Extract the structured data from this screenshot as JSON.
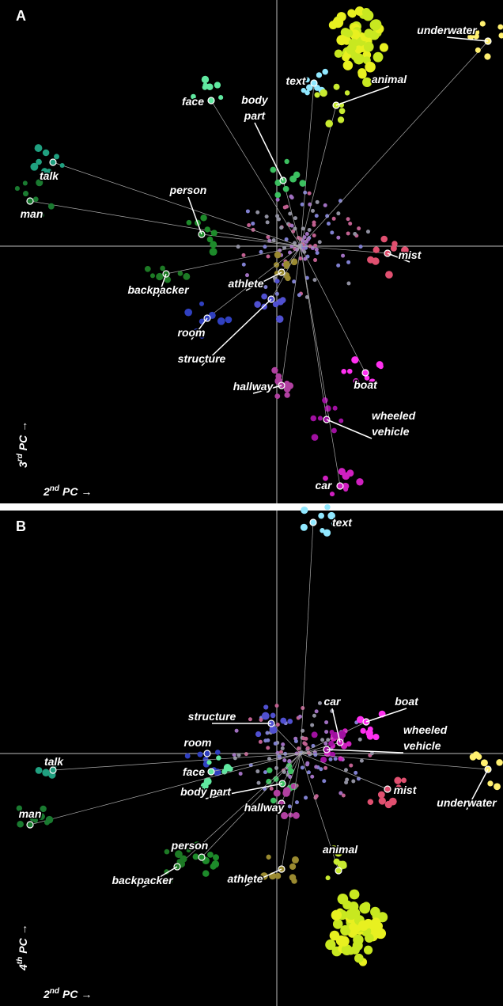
{
  "panels": [
    {
      "letter": "A",
      "x_axis": {
        "num": "2",
        "sup": "nd",
        "text": "PC →"
      },
      "y_axis": {
        "num": "3",
        "sup": "rd",
        "text": "PC →"
      },
      "labels": [
        {
          "lines": [
            "underwater"
          ]
        },
        {
          "lines": [
            "text"
          ]
        },
        {
          "lines": [
            "animal"
          ]
        },
        {
          "lines": [
            "face"
          ]
        },
        {
          "lines": [
            "body",
            "part"
          ]
        },
        {
          "lines": [
            "talk"
          ]
        },
        {
          "lines": [
            "man"
          ]
        },
        {
          "lines": [
            "person"
          ]
        },
        {
          "lines": [
            "backpacker"
          ]
        },
        {
          "lines": [
            "athlete"
          ]
        },
        {
          "lines": [
            "mist"
          ]
        },
        {
          "lines": [
            "room"
          ]
        },
        {
          "lines": [
            "structure"
          ]
        },
        {
          "lines": [
            "hallway"
          ]
        },
        {
          "lines": [
            "boat"
          ]
        },
        {
          "lines": [
            "wheeled",
            "vehicle"
          ]
        },
        {
          "lines": [
            "car"
          ]
        }
      ]
    },
    {
      "letter": "B",
      "x_axis": {
        "num": "2",
        "sup": "nd",
        "text": "PC →"
      },
      "y_axis": {
        "num": "4",
        "sup": "th",
        "text": "PC →"
      },
      "labels": [
        {
          "lines": [
            "text"
          ]
        },
        {
          "lines": [
            "structure"
          ]
        },
        {
          "lines": [
            "car"
          ]
        },
        {
          "lines": [
            "boat"
          ]
        },
        {
          "lines": [
            "wheeled",
            "vehicle"
          ]
        },
        {
          "lines": [
            "room"
          ]
        },
        {
          "lines": [
            "talk"
          ]
        },
        {
          "lines": [
            "face"
          ]
        },
        {
          "lines": [
            "body part"
          ]
        },
        {
          "lines": [
            "mist"
          ]
        },
        {
          "lines": [
            "underwater"
          ]
        },
        {
          "lines": [
            "hallway"
          ]
        },
        {
          "lines": [
            "man"
          ]
        },
        {
          "lines": [
            "person"
          ]
        },
        {
          "lines": [
            "animal"
          ]
        },
        {
          "lines": [
            "backpacker"
          ]
        },
        {
          "lines": [
            "athlete"
          ]
        }
      ]
    }
  ]
}
